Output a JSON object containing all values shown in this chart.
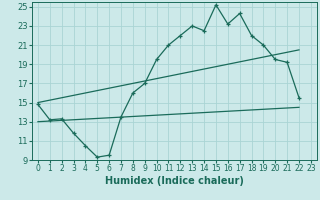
{
  "xlabel": "Humidex (Indice chaleur)",
  "ylabel": "",
  "xlim": [
    -0.5,
    23.5
  ],
  "ylim": [
    9,
    25.5
  ],
  "xticks": [
    0,
    1,
    2,
    3,
    4,
    5,
    6,
    7,
    8,
    9,
    10,
    11,
    12,
    13,
    14,
    15,
    16,
    17,
    18,
    19,
    20,
    21,
    22,
    23
  ],
  "yticks": [
    9,
    11,
    13,
    15,
    17,
    19,
    21,
    23,
    25
  ],
  "bg_color": "#cce9e9",
  "grid_color": "#aad4d4",
  "line_color": "#1a6b5a",
  "line1_x": [
    0,
    1,
    2,
    3,
    4,
    5,
    6,
    7,
    8,
    9,
    10,
    11,
    12,
    13,
    14,
    15,
    16,
    17,
    18,
    19,
    20,
    21,
    22
  ],
  "line1_y": [
    14.8,
    13.2,
    13.3,
    11.8,
    10.5,
    9.3,
    9.5,
    13.5,
    16.0,
    17.0,
    19.5,
    21.0,
    22.0,
    23.0,
    22.5,
    25.2,
    23.2,
    24.3,
    22.0,
    21.0,
    19.5,
    19.2,
    15.5
  ],
  "line2_x": [
    0,
    22
  ],
  "line2_y": [
    15.0,
    20.5
  ],
  "line3_x": [
    0,
    22
  ],
  "line3_y": [
    13.0,
    14.5
  ],
  "xlabel_fontsize": 7,
  "tick_fontsize": 5.5,
  "ytick_fontsize": 6
}
